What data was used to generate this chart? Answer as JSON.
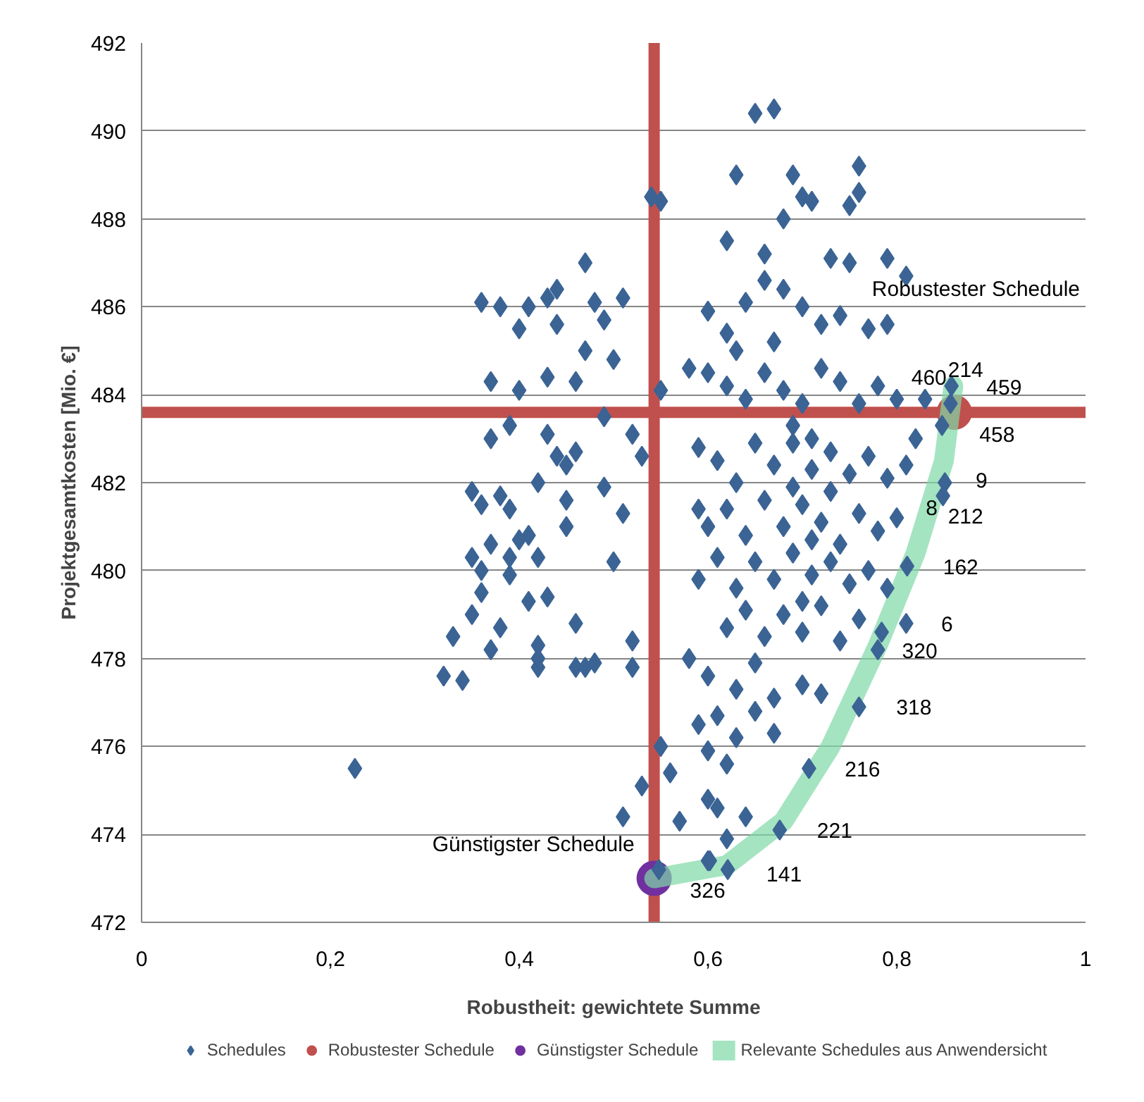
{
  "chart_data": {
    "type": "scatter",
    "xlabel": "Robustheit: gewichtete Summe",
    "ylabel": "Projektgesamtkosten [Mio. €]",
    "xlim": [
      0,
      1
    ],
    "ylim": [
      472,
      492
    ],
    "xticks": [
      0,
      {
        "value": 0.2,
        "label": "0,2"
      },
      {
        "value": 0.4,
        "label": "0,4"
      },
      {
        "value": 0.6,
        "label": "0,6"
      },
      {
        "value": 0.8,
        "label": "0,8"
      },
      1
    ],
    "yticks": [
      472,
      474,
      476,
      478,
      480,
      482,
      484,
      486,
      488,
      490,
      492
    ],
    "grid": "y",
    "legend": "bottom",
    "series": [
      {
        "name": "Schedules",
        "marker": "diamond",
        "color": "#3b6495",
        "x": [
          0.226,
          0.32,
          0.34,
          0.33,
          0.35,
          0.36,
          0.35,
          0.36,
          0.35,
          0.36,
          0.37,
          0.37,
          0.36,
          0.38,
          0.38,
          0.37,
          0.39,
          0.39,
          0.39,
          0.4,
          0.4,
          0.41,
          0.42,
          0.42,
          0.41,
          0.41,
          0.42,
          0.42,
          0.43,
          0.43,
          0.44,
          0.43,
          0.44,
          0.45,
          0.45,
          0.46,
          0.46,
          0.46,
          0.47,
          0.48,
          0.46,
          0.47,
          0.47,
          0.48,
          0.49,
          0.49,
          0.49,
          0.5,
          0.51,
          0.52,
          0.51,
          0.52,
          0.52,
          0.53,
          0.5,
          0.44,
          0.45,
          0.38,
          0.39,
          0.4,
          0.37,
          0.43,
          0.42,
          0.51,
          0.53,
          0.55,
          0.56,
          0.55,
          0.54,
          0.55,
          0.65,
          0.67,
          0.63,
          0.69,
          0.7,
          0.71,
          0.76,
          0.76,
          0.75,
          0.79,
          0.81,
          0.62,
          0.66,
          0.68,
          0.73,
          0.75,
          0.6,
          0.62,
          0.64,
          0.66,
          0.68,
          0.7,
          0.72,
          0.74,
          0.77,
          0.79,
          0.58,
          0.6,
          0.62,
          0.64,
          0.66,
          0.68,
          0.7,
          0.72,
          0.74,
          0.76,
          0.78,
          0.8,
          0.83,
          0.59,
          0.61,
          0.63,
          0.65,
          0.67,
          0.69,
          0.71,
          0.73,
          0.75,
          0.77,
          0.79,
          0.81,
          0.82,
          0.59,
          0.6,
          0.62,
          0.64,
          0.66,
          0.68,
          0.7,
          0.72,
          0.74,
          0.76,
          0.78,
          0.8,
          0.59,
          0.61,
          0.63,
          0.65,
          0.67,
          0.69,
          0.71,
          0.73,
          0.75,
          0.77,
          0.79,
          0.62,
          0.64,
          0.66,
          0.68,
          0.7,
          0.72,
          0.74,
          0.76,
          0.78,
          0.58,
          0.6,
          0.63,
          0.65,
          0.67,
          0.7,
          0.72,
          0.59,
          0.61,
          0.63,
          0.65,
          0.67,
          0.6,
          0.62,
          0.57,
          0.6,
          0.61,
          0.6,
          0.62,
          0.64,
          0.69,
          0.71,
          0.7,
          0.73,
          0.69,
          0.71,
          0.67,
          0.63,
          0.858,
          0.857,
          0.848,
          0.851,
          0.849,
          0.811,
          0.81,
          0.784,
          0.76,
          0.707,
          0.676,
          0.621,
          0.602,
          0.548
        ],
        "values": [
          475.5,
          477.6,
          477.5,
          478.5,
          479.0,
          479.5,
          480.3,
          480.0,
          481.8,
          481.5,
          483.0,
          484.3,
          486.1,
          486.0,
          478.7,
          478.2,
          479.9,
          481.4,
          483.3,
          484.1,
          485.5,
          486.0,
          477.8,
          478.0,
          479.3,
          480.8,
          480.3,
          482.0,
          483.1,
          484.4,
          485.6,
          486.2,
          486.4,
          482.4,
          481.6,
          482.7,
          478.8,
          477.8,
          477.8,
          477.9,
          484.3,
          485.0,
          487.0,
          486.1,
          485.7,
          483.5,
          481.9,
          480.2,
          481.3,
          483.1,
          486.2,
          478.4,
          477.8,
          482.6,
          484.8,
          482.6,
          481.0,
          481.7,
          480.3,
          480.7,
          480.6,
          479.4,
          478.3,
          474.4,
          475.1,
          476.0,
          475.4,
          488.4,
          488.5,
          484.1,
          490.4,
          490.5,
          489.0,
          489.0,
          488.5,
          488.4,
          489.2,
          488.6,
          488.3,
          487.1,
          486.7,
          487.5,
          487.2,
          488.0,
          487.1,
          487.0,
          485.9,
          485.4,
          486.1,
          486.6,
          486.4,
          486.0,
          485.6,
          485.8,
          485.5,
          485.6,
          484.6,
          484.5,
          484.2,
          483.9,
          484.5,
          484.1,
          483.8,
          484.6,
          484.3,
          483.8,
          484.2,
          483.9,
          483.9,
          482.8,
          482.5,
          482.0,
          482.9,
          482.4,
          482.9,
          482.3,
          482.7,
          482.2,
          482.6,
          482.1,
          482.4,
          483.0,
          481.4,
          481.0,
          481.4,
          480.8,
          481.6,
          481.0,
          481.5,
          481.1,
          480.6,
          481.3,
          480.9,
          481.2,
          479.8,
          480.3,
          479.6,
          480.2,
          479.8,
          480.4,
          479.9,
          480.2,
          479.7,
          480.0,
          479.6,
          478.7,
          479.1,
          478.5,
          479.0,
          478.6,
          479.2,
          478.4,
          478.9,
          478.2,
          478.0,
          477.6,
          477.3,
          477.9,
          477.1,
          477.4,
          477.2,
          476.5,
          476.7,
          476.2,
          476.8,
          476.3,
          475.9,
          475.6,
          474.3,
          474.8,
          474.6,
          473.4,
          473.9,
          474.4,
          481.9,
          480.7,
          479.3,
          481.8,
          483.3,
          483.0,
          485.2,
          485.0,
          484.2,
          483.8,
          483.3,
          482.0,
          481.7,
          480.1,
          478.8,
          478.6,
          476.9,
          475.5,
          474.1,
          473.2,
          473.4,
          473.2
        ]
      },
      {
        "name": "Robustester Schedule",
        "type": "scatter",
        "marker": "circle",
        "color": "#c0504d",
        "x": [
          0.861
        ],
        "values": [
          483.6
        ]
      },
      {
        "name": "Günstigster Schedule",
        "type": "scatter",
        "marker": "circle",
        "color": "#7030a0",
        "x": [
          0.543
        ],
        "values": [
          473.0
        ]
      },
      {
        "name": "Relevante Schedules aus Anwendersicht",
        "type": "line",
        "color": "#7fd9a6",
        "x": [
          0.543,
          0.62,
          0.68,
          0.73,
          0.78,
          0.82,
          0.85,
          0.86
        ],
        "values": [
          473.0,
          473.3,
          474.3,
          476.0,
          478.3,
          480.4,
          482.5,
          484.2
        ]
      }
    ],
    "ref_lines": [
      {
        "axis": "x",
        "value": 0.543,
        "color": "#c0504d"
      },
      {
        "axis": "y",
        "value": 483.6,
        "color": "#c0504d"
      }
    ],
    "annotations": [
      "Robustester Schedule",
      {
        "text": "Günstigster Schedule",
        "x": 0.543,
        "y": 473.0
      },
      {
        "text": "460",
        "x": 0.861,
        "y": 483.6
      },
      {
        "text": "214",
        "x": 0.858,
        "y": 484.2
      },
      {
        "text": "459",
        "x": 0.857,
        "y": 483.8
      },
      {
        "text": "458",
        "x": 0.848,
        "y": 483.3
      },
      {
        "text": "9",
        "x": 0.851,
        "y": 482.0
      },
      {
        "text": "8",
        "x": 0.849,
        "y": 481.7
      },
      {
        "text": "212",
        "x": 0.849,
        "y": 481.7
      },
      {
        "text": "162",
        "x": 0.811,
        "y": 480.1
      },
      {
        "text": "6",
        "x": 0.81,
        "y": 478.8
      },
      {
        "text": "320",
        "x": 0.784,
        "y": 478.6
      },
      {
        "text": "318",
        "x": 0.76,
        "y": 476.9
      },
      {
        "text": "216",
        "x": 0.707,
        "y": 475.5
      },
      {
        "text": "221",
        "x": 0.676,
        "y": 474.1
      },
      {
        "text": "141",
        "x": 0.621,
        "y": 473.2
      },
      {
        "text": "326",
        "x": 0.543,
        "y": 473.0
      }
    ]
  }
}
